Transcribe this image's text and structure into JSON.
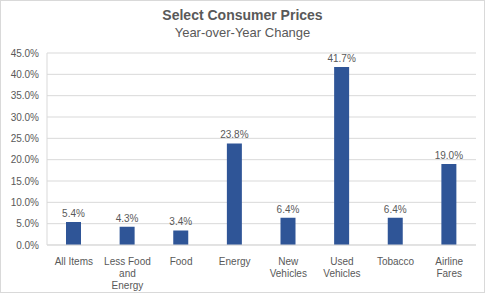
{
  "chart_data": {
    "type": "bar",
    "title": "Select Consumer Prices",
    "subtitle": "Year-over-Year Change",
    "categories": [
      "All Items",
      "Less Food and Energy",
      "Food",
      "Energy",
      "New Vehicles",
      "Used Vehicles",
      "Tobacco",
      "Airline Fares"
    ],
    "values": [
      5.4,
      4.3,
      3.4,
      23.8,
      6.4,
      41.7,
      6.4,
      19.0
    ],
    "value_labels": [
      "5.4%",
      "4.3%",
      "3.4%",
      "23.8%",
      "6.4%",
      "41.7%",
      "6.4%",
      "19.0%"
    ],
    "color": "#2f5597",
    "ylim": [
      0,
      45
    ],
    "yticks": [
      {
        "value": 0,
        "label": "0.0%"
      },
      {
        "value": 5,
        "label": "5.0%"
      },
      {
        "value": 10,
        "label": "10.0%"
      },
      {
        "value": 15,
        "label": "15.0%"
      },
      {
        "value": 20,
        "label": "20.0%"
      },
      {
        "value": 25,
        "label": "25.0%"
      },
      {
        "value": 30,
        "label": "30.0%"
      },
      {
        "value": 35,
        "label": "35.0%"
      },
      {
        "value": 40,
        "label": "40.0%"
      },
      {
        "value": 45,
        "label": "45.0%"
      }
    ],
    "grid": true,
    "data_labels": true
  }
}
